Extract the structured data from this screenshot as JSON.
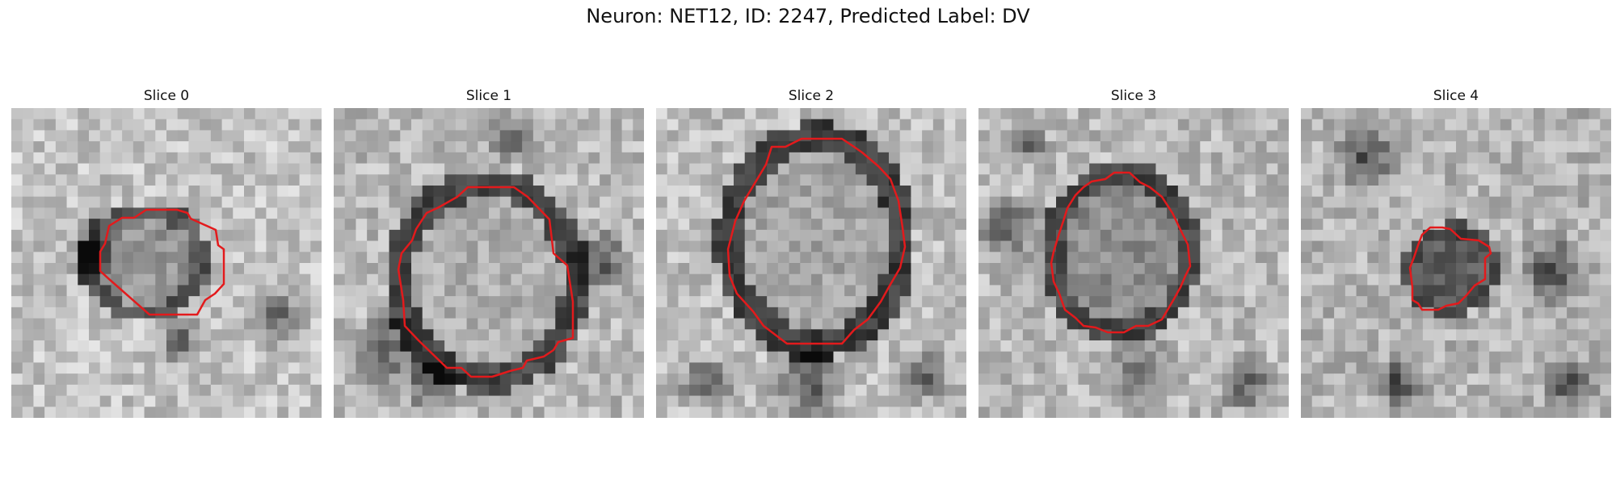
{
  "figure": {
    "title": "Neuron: NET12, ID: 2247, Predicted Label: DV",
    "contour_color": "#e31a1c",
    "image_colormap": "grayscale"
  },
  "panels": [
    {
      "title": "Slice 0",
      "cell_tone": "medium-gray cell body with darker membrane ring"
    },
    {
      "title": "Slice 1",
      "cell_tone": "bright upper half, dark lower half"
    },
    {
      "title": "Slice 2",
      "cell_tone": "bright interior with dark rim"
    },
    {
      "title": "Slice 3",
      "cell_tone": "medium-gray interior with dark rim"
    },
    {
      "title": "Slice 4",
      "cell_tone": "small dark cell body"
    }
  ]
}
